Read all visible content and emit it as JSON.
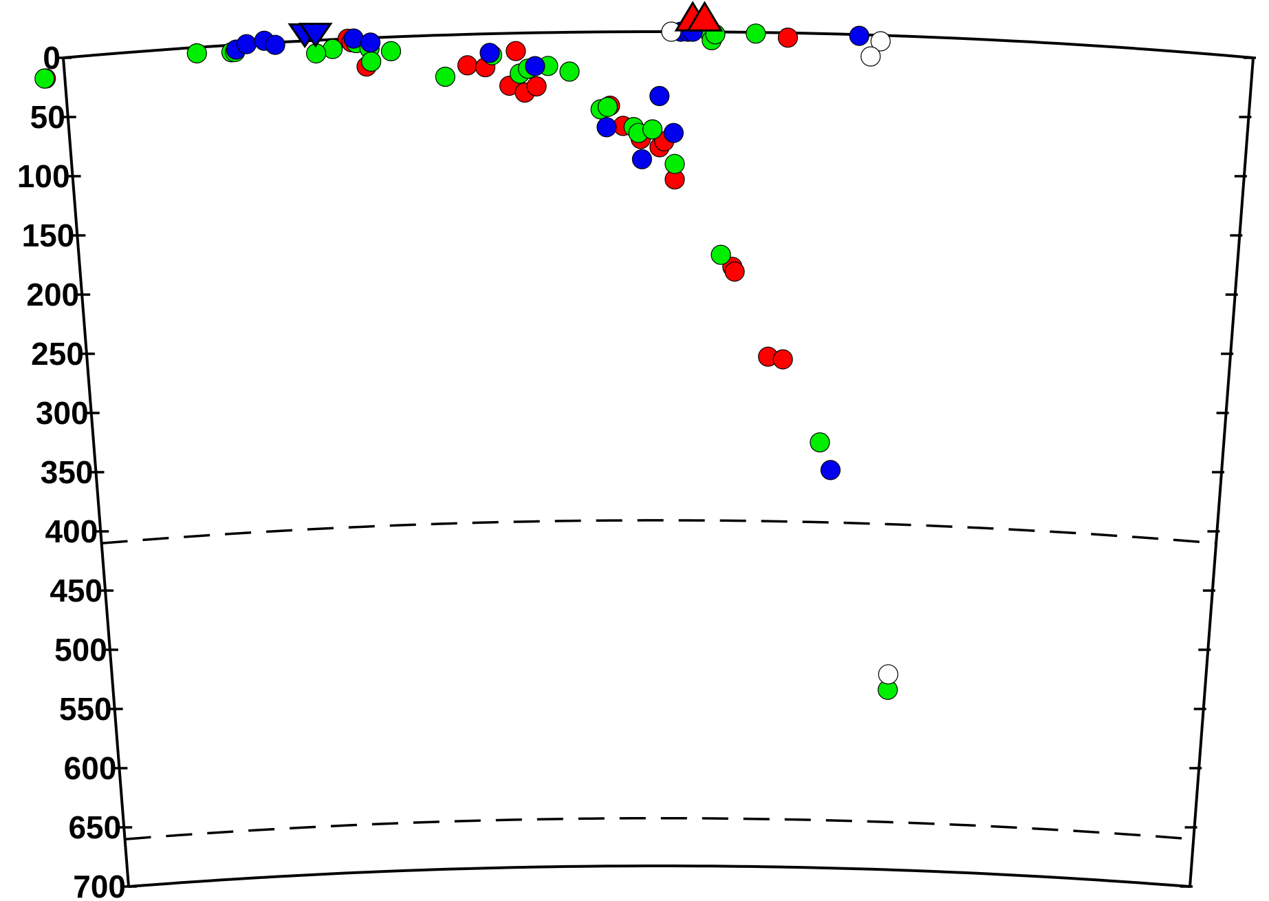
{
  "chart_data": {
    "type": "scatter",
    "title": "",
    "xlabel": "",
    "ylabel": "",
    "ylim": [
      0,
      700
    ],
    "y_ticks": [
      "0",
      "50",
      "100",
      "150",
      "200",
      "250",
      "300",
      "350",
      "400",
      "450",
      "500",
      "550",
      "600",
      "650",
      "700"
    ],
    "discontinuities": [
      410,
      660
    ],
    "colors": {
      "red": "#ff0000",
      "green": "#00ee00",
      "blue": "#0000ee",
      "white": "#ffffff",
      "station_blue": "#0000ee",
      "station_red": "#ff0000"
    },
    "stations": [
      {
        "x": 0.203,
        "color": "blue",
        "shape": "inverted-triangle"
      },
      {
        "x": 0.212,
        "color": "blue",
        "shape": "inverted-triangle"
      },
      {
        "x": 0.529,
        "color": "red",
        "shape": "triangle"
      },
      {
        "x": 0.539,
        "color": "red",
        "shape": "triangle"
      }
    ],
    "series": [
      {
        "color": "red",
        "points": [
          {
            "x": -0.016,
            "y": 16
          },
          {
            "x": 0.239,
            "y": 0
          },
          {
            "x": 0.242,
            "y": 3
          },
          {
            "x": 0.254,
            "y": 24
          },
          {
            "x": 0.339,
            "y": 26
          },
          {
            "x": 0.354,
            "y": 28
          },
          {
            "x": 0.38,
            "y": 15
          },
          {
            "x": 0.374,
            "y": 44
          },
          {
            "x": 0.387,
            "y": 50
          },
          {
            "x": 0.397,
            "y": 45
          },
          {
            "x": 0.459,
            "y": 62
          },
          {
            "x": 0.47,
            "y": 79
          },
          {
            "x": 0.485,
            "y": 90
          },
          {
            "x": 0.501,
            "y": 97
          },
          {
            "x": 0.505,
            "y": 92
          },
          {
            "x": 0.514,
            "y": 124
          },
          {
            "x": 0.609,
            "y": 4
          },
          {
            "x": 0.564,
            "y": 197
          },
          {
            "x": 0.566,
            "y": 201
          },
          {
            "x": 0.596,
            "y": 272
          },
          {
            "x": 0.609,
            "y": 274
          }
        ]
      },
      {
        "color": "green",
        "points": [
          {
            "x": -0.017,
            "y": 16
          },
          {
            "x": 0.112,
            "y": 5
          },
          {
            "x": 0.141,
            "y": 6
          },
          {
            "x": 0.144,
            "y": 6
          },
          {
            "x": 0.226,
            "y": 8
          },
          {
            "x": 0.212,
            "y": 11
          },
          {
            "x": 0.246,
            "y": 4
          },
          {
            "x": 0.257,
            "y": 9
          },
          {
            "x": 0.275,
            "y": 12
          },
          {
            "x": 0.258,
            "y": 20
          },
          {
            "x": 0.32,
            "y": 35
          },
          {
            "x": 0.36,
            "y": 18
          },
          {
            "x": 0.383,
            "y": 34
          },
          {
            "x": 0.39,
            "y": 30
          },
          {
            "x": 0.407,
            "y": 28
          },
          {
            "x": 0.425,
            "y": 33
          },
          {
            "x": 0.451,
            "y": 65
          },
          {
            "x": 0.457,
            "y": 63
          },
          {
            "x": 0.479,
            "y": 80
          },
          {
            "x": 0.483,
            "y": 85
          },
          {
            "x": 0.495,
            "y": 82
          },
          {
            "x": 0.514,
            "y": 111
          },
          {
            "x": 0.544,
            "y": 2
          },
          {
            "x": 0.545,
            "y": 7
          },
          {
            "x": 0.548,
            "y": 2
          },
          {
            "x": 0.582,
            "y": 1
          },
          {
            "x": 0.554,
            "y": 187
          },
          {
            "x": 0.643,
            "y": 343
          },
          {
            "x": 0.71,
            "y": 549
          }
        ]
      },
      {
        "color": "blue",
        "points": [
          {
            "x": 0.145,
            "y": 4
          },
          {
            "x": 0.154,
            "y": 0
          },
          {
            "x": 0.169,
            "y": -2
          },
          {
            "x": 0.178,
            "y": 2
          },
          {
            "x": 0.244,
            "y": 0
          },
          {
            "x": 0.258,
            "y": 4
          },
          {
            "x": 0.358,
            "y": 16
          },
          {
            "x": 0.396,
            "y": 28
          },
          {
            "x": 0.456,
            "y": 80
          },
          {
            "x": 0.486,
            "y": 107
          },
          {
            "x": 0.501,
            "y": 54
          },
          {
            "x": 0.513,
            "y": 85
          },
          {
            "x": 0.519,
            "y": 0
          },
          {
            "x": 0.525,
            "y": 0
          },
          {
            "x": 0.529,
            "y": 0
          },
          {
            "x": 0.653,
            "y": 366
          },
          {
            "x": 0.669,
            "y": 1
          }
        ]
      },
      {
        "color": "white",
        "points": [
          {
            "x": 0.511,
            "y": 0
          },
          {
            "x": 0.687,
            "y": 5
          },
          {
            "x": 0.679,
            "y": 18
          },
          {
            "x": 0.71,
            "y": 536
          }
        ]
      }
    ]
  }
}
